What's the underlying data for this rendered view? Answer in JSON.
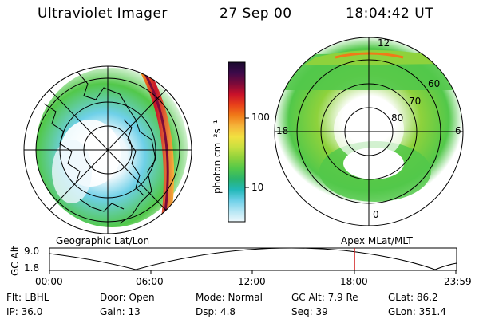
{
  "header": {
    "instrument": "Ultraviolet Imager",
    "date": "27 Sep 00",
    "time": "18:04:42 UT"
  },
  "panels": {
    "left_caption": "Geographic Lat/Lon",
    "right_caption": "Apex MLat/MLT"
  },
  "colorbar": {
    "label": "photon cm⁻²s⁻¹",
    "tick_labels": [
      "100",
      "10"
    ],
    "colors": [
      "#1a0a2e",
      "#3c0a4a",
      "#7a0a3a",
      "#c8102a",
      "#e8401a",
      "#f07a18",
      "#f5b43a",
      "#f2e040",
      "#c8e040",
      "#8ed23c",
      "#52c84a",
      "#2ab46e",
      "#22b8b8",
      "#6ed0e8",
      "#b4e6f4",
      "#eef8fc"
    ]
  },
  "mlt_labels": {
    "top": "12",
    "left": "18",
    "right": "6",
    "bottom": "0"
  },
  "mlat_labels": [
    "60",
    "70",
    "80"
  ],
  "altitude_plot": {
    "axis_label": "GC Alt",
    "y_ticks": [
      "9.0",
      "1.8"
    ],
    "x_ticks": [
      "00:00",
      "06:00",
      "12:00",
      "18:00",
      "23:59"
    ],
    "marker_color": "#d01818"
  },
  "footer": {
    "filter": "Flt: LBHL",
    "door": "Door: Open",
    "mode": "Mode: Normal",
    "gc_alt": "GC Alt: 7.9 Re",
    "glat": "GLat:  86.2",
    "ip": "IP: 36.0",
    "gain": "Gain: 13",
    "dsp": "Dsp:    4.8",
    "seq": "Seq: 39",
    "glon": "GLon: 351.4"
  }
}
